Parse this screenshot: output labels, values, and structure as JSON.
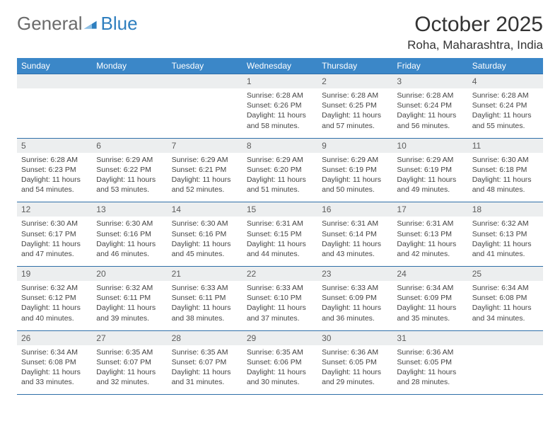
{
  "brand": {
    "word1": "General",
    "word2": "Blue",
    "triangle_color": "#2f7fbf"
  },
  "title": "October 2025",
  "location": "Roha, Maharashtra, India",
  "colors": {
    "header_bg": "#3b87c8",
    "row_border": "#2f6fa8",
    "daynum_bg": "#eceeef",
    "text": "#333333",
    "body_bg": "#ffffff"
  },
  "typography": {
    "title_fontsize": 30,
    "location_fontsize": 17,
    "th_fontsize": 12,
    "cell_fontsize": 10.5
  },
  "weekdays": [
    "Sunday",
    "Monday",
    "Tuesday",
    "Wednesday",
    "Thursday",
    "Friday",
    "Saturday"
  ],
  "weeks": [
    [
      null,
      null,
      null,
      {
        "n": "1",
        "sunrise": "6:28 AM",
        "sunset": "6:26 PM",
        "daylight": "11 hours and 58 minutes."
      },
      {
        "n": "2",
        "sunrise": "6:28 AM",
        "sunset": "6:25 PM",
        "daylight": "11 hours and 57 minutes."
      },
      {
        "n": "3",
        "sunrise": "6:28 AM",
        "sunset": "6:24 PM",
        "daylight": "11 hours and 56 minutes."
      },
      {
        "n": "4",
        "sunrise": "6:28 AM",
        "sunset": "6:24 PM",
        "daylight": "11 hours and 55 minutes."
      }
    ],
    [
      {
        "n": "5",
        "sunrise": "6:28 AM",
        "sunset": "6:23 PM",
        "daylight": "11 hours and 54 minutes."
      },
      {
        "n": "6",
        "sunrise": "6:29 AM",
        "sunset": "6:22 PM",
        "daylight": "11 hours and 53 minutes."
      },
      {
        "n": "7",
        "sunrise": "6:29 AM",
        "sunset": "6:21 PM",
        "daylight": "11 hours and 52 minutes."
      },
      {
        "n": "8",
        "sunrise": "6:29 AM",
        "sunset": "6:20 PM",
        "daylight": "11 hours and 51 minutes."
      },
      {
        "n": "9",
        "sunrise": "6:29 AM",
        "sunset": "6:19 PM",
        "daylight": "11 hours and 50 minutes."
      },
      {
        "n": "10",
        "sunrise": "6:29 AM",
        "sunset": "6:19 PM",
        "daylight": "11 hours and 49 minutes."
      },
      {
        "n": "11",
        "sunrise": "6:30 AM",
        "sunset": "6:18 PM",
        "daylight": "11 hours and 48 minutes."
      }
    ],
    [
      {
        "n": "12",
        "sunrise": "6:30 AM",
        "sunset": "6:17 PM",
        "daylight": "11 hours and 47 minutes."
      },
      {
        "n": "13",
        "sunrise": "6:30 AM",
        "sunset": "6:16 PM",
        "daylight": "11 hours and 46 minutes."
      },
      {
        "n": "14",
        "sunrise": "6:30 AM",
        "sunset": "6:16 PM",
        "daylight": "11 hours and 45 minutes."
      },
      {
        "n": "15",
        "sunrise": "6:31 AM",
        "sunset": "6:15 PM",
        "daylight": "11 hours and 44 minutes."
      },
      {
        "n": "16",
        "sunrise": "6:31 AM",
        "sunset": "6:14 PM",
        "daylight": "11 hours and 43 minutes."
      },
      {
        "n": "17",
        "sunrise": "6:31 AM",
        "sunset": "6:13 PM",
        "daylight": "11 hours and 42 minutes."
      },
      {
        "n": "18",
        "sunrise": "6:32 AM",
        "sunset": "6:13 PM",
        "daylight": "11 hours and 41 minutes."
      }
    ],
    [
      {
        "n": "19",
        "sunrise": "6:32 AM",
        "sunset": "6:12 PM",
        "daylight": "11 hours and 40 minutes."
      },
      {
        "n": "20",
        "sunrise": "6:32 AM",
        "sunset": "6:11 PM",
        "daylight": "11 hours and 39 minutes."
      },
      {
        "n": "21",
        "sunrise": "6:33 AM",
        "sunset": "6:11 PM",
        "daylight": "11 hours and 38 minutes."
      },
      {
        "n": "22",
        "sunrise": "6:33 AM",
        "sunset": "6:10 PM",
        "daylight": "11 hours and 37 minutes."
      },
      {
        "n": "23",
        "sunrise": "6:33 AM",
        "sunset": "6:09 PM",
        "daylight": "11 hours and 36 minutes."
      },
      {
        "n": "24",
        "sunrise": "6:34 AM",
        "sunset": "6:09 PM",
        "daylight": "11 hours and 35 minutes."
      },
      {
        "n": "25",
        "sunrise": "6:34 AM",
        "sunset": "6:08 PM",
        "daylight": "11 hours and 34 minutes."
      }
    ],
    [
      {
        "n": "26",
        "sunrise": "6:34 AM",
        "sunset": "6:08 PM",
        "daylight": "11 hours and 33 minutes."
      },
      {
        "n": "27",
        "sunrise": "6:35 AM",
        "sunset": "6:07 PM",
        "daylight": "11 hours and 32 minutes."
      },
      {
        "n": "28",
        "sunrise": "6:35 AM",
        "sunset": "6:07 PM",
        "daylight": "11 hours and 31 minutes."
      },
      {
        "n": "29",
        "sunrise": "6:35 AM",
        "sunset": "6:06 PM",
        "daylight": "11 hours and 30 minutes."
      },
      {
        "n": "30",
        "sunrise": "6:36 AM",
        "sunset": "6:05 PM",
        "daylight": "11 hours and 29 minutes."
      },
      {
        "n": "31",
        "sunrise": "6:36 AM",
        "sunset": "6:05 PM",
        "daylight": "11 hours and 28 minutes."
      },
      null
    ]
  ],
  "labels": {
    "sunrise": "Sunrise: ",
    "sunset": "Sunset: ",
    "daylight": "Daylight: "
  }
}
